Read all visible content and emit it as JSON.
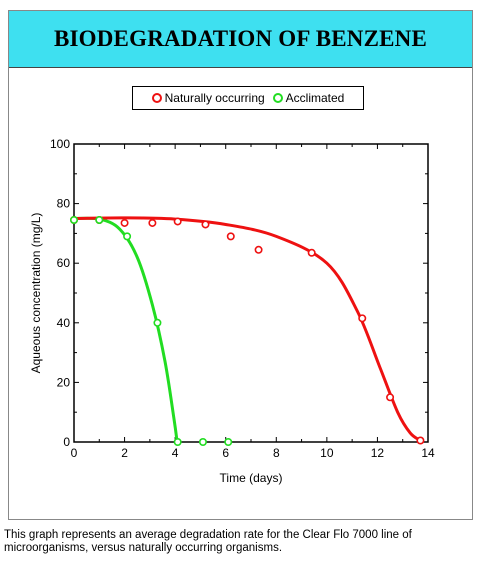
{
  "chart_data": {
    "type": "line",
    "title": "BIODEGRADATION OF BENZENE",
    "xlabel": "Time (days)",
    "ylabel": "Aqueous concentration (mg/L)",
    "xlim": [
      0,
      14
    ],
    "ylim": [
      0,
      100
    ],
    "xticks": [
      "0",
      "2",
      "4",
      "6",
      "8",
      "10",
      "12",
      "14"
    ],
    "yticks": [
      "0",
      "20",
      "40",
      "60",
      "80",
      "100"
    ],
    "grid": false,
    "legend_position": "top",
    "series": [
      {
        "name": "Naturally occurring",
        "color": "#ee1111",
        "points": [
          {
            "x": 0,
            "y": 74.5
          },
          {
            "x": 1,
            "y": 74.5
          },
          {
            "x": 2,
            "y": 73.5
          },
          {
            "x": 3.1,
            "y": 73.5
          },
          {
            "x": 4.1,
            "y": 74
          },
          {
            "x": 5.2,
            "y": 73
          },
          {
            "x": 6.2,
            "y": 69
          },
          {
            "x": 7.3,
            "y": 64.5
          },
          {
            "x": 9.4,
            "y": 63.5
          },
          {
            "x": 11.4,
            "y": 41.5
          },
          {
            "x": 12.5,
            "y": 15
          },
          {
            "x": 13.7,
            "y": 0.5
          }
        ],
        "curve": [
          {
            "x": 0,
            "y": 75
          },
          {
            "x": 2,
            "y": 75.2
          },
          {
            "x": 4,
            "y": 74.8
          },
          {
            "x": 6,
            "y": 73
          },
          {
            "x": 8,
            "y": 69
          },
          {
            "x": 10,
            "y": 60
          },
          {
            "x": 11.2,
            "y": 44
          },
          {
            "x": 12.1,
            "y": 25
          },
          {
            "x": 12.8,
            "y": 10
          },
          {
            "x": 13.3,
            "y": 3
          },
          {
            "x": 13.7,
            "y": 0.5
          }
        ]
      },
      {
        "name": "Acclimated",
        "color": "#22dd22",
        "points": [
          {
            "x": 0,
            "y": 74.5
          },
          {
            "x": 1,
            "y": 74.5
          },
          {
            "x": 2.1,
            "y": 69
          },
          {
            "x": 3.3,
            "y": 40
          },
          {
            "x": 4.1,
            "y": 0
          },
          {
            "x": 5.1,
            "y": 0
          },
          {
            "x": 6.1,
            "y": 0
          }
        ],
        "curve": [
          {
            "x": 0,
            "y": 75
          },
          {
            "x": 1,
            "y": 74.8
          },
          {
            "x": 1.8,
            "y": 71.5
          },
          {
            "x": 2.5,
            "y": 62
          },
          {
            "x": 3.1,
            "y": 46
          },
          {
            "x": 3.6,
            "y": 27
          },
          {
            "x": 3.95,
            "y": 8
          },
          {
            "x": 4.08,
            "y": 0
          }
        ]
      }
    ],
    "caption": "This graph represents an average degradation rate for the Clear Flo 7000 line of microorganisms, versus naturally occurring organisms."
  }
}
